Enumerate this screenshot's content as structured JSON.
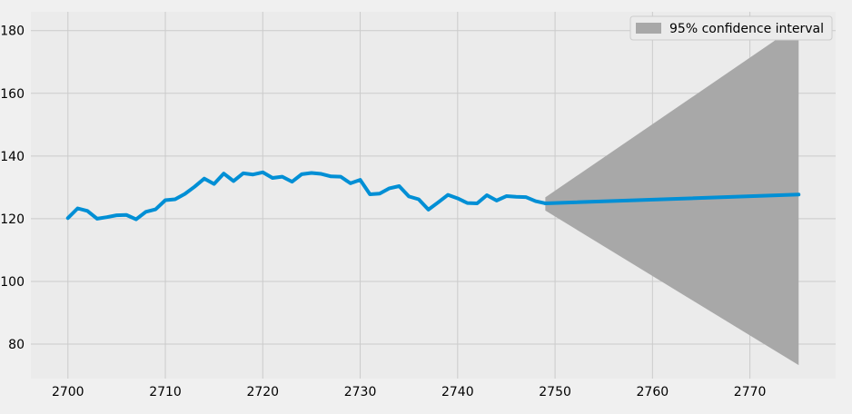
{
  "chart_data": {
    "type": "line",
    "title": "",
    "xlabel": "",
    "ylabel": "",
    "xlim": [
      2696.2,
      2778.8
    ],
    "ylim": [
      69,
      186
    ],
    "x_ticks": [
      2700,
      2710,
      2720,
      2730,
      2740,
      2750,
      2760,
      2770
    ],
    "y_ticks": [
      80,
      100,
      120,
      140,
      160,
      180
    ],
    "grid": true,
    "legend_position": "top-right",
    "colors": {
      "background": "#f0f0f0",
      "plot_area": "#ebebeb",
      "grid": "#cbcbcb",
      "line": "#008fd5",
      "band": "#a8a8a8"
    },
    "series": [
      {
        "values": [
          [
            2700,
            120.2
          ],
          [
            2701,
            123.3
          ],
          [
            2702,
            122.5
          ],
          [
            2703,
            120.0
          ],
          [
            2704,
            120.5
          ],
          [
            2705,
            121.1
          ],
          [
            2706,
            121.2
          ],
          [
            2707,
            119.8
          ],
          [
            2708,
            122.2
          ],
          [
            2709,
            123.0
          ],
          [
            2710,
            125.9
          ],
          [
            2711,
            126.2
          ],
          [
            2712,
            127.9
          ],
          [
            2713,
            130.2
          ],
          [
            2714,
            132.8
          ],
          [
            2715,
            131.1
          ],
          [
            2716,
            134.4
          ],
          [
            2717,
            132.0
          ],
          [
            2718,
            134.5
          ],
          [
            2719,
            134.1
          ],
          [
            2720,
            134.8
          ],
          [
            2721,
            133.0
          ],
          [
            2722,
            133.4
          ],
          [
            2723,
            131.8
          ],
          [
            2724,
            134.2
          ],
          [
            2725,
            134.6
          ],
          [
            2726,
            134.3
          ],
          [
            2727,
            133.5
          ],
          [
            2728,
            133.4
          ],
          [
            2729,
            131.3
          ],
          [
            2730,
            132.4
          ],
          [
            2731,
            127.8
          ],
          [
            2732,
            128.0
          ],
          [
            2733,
            129.7
          ],
          [
            2734,
            130.4
          ],
          [
            2735,
            127.1
          ],
          [
            2736,
            126.2
          ],
          [
            2737,
            122.9
          ],
          [
            2738,
            125.2
          ],
          [
            2739,
            127.6
          ],
          [
            2740,
            126.5
          ],
          [
            2741,
            125.0
          ],
          [
            2742,
            124.9
          ],
          [
            2743,
            127.5
          ],
          [
            2744,
            125.8
          ],
          [
            2745,
            127.2
          ],
          [
            2746,
            127.0
          ],
          [
            2747,
            126.9
          ],
          [
            2748,
            125.6
          ],
          [
            2749,
            124.9
          ]
        ]
      },
      {
        "values": [
          [
            2749,
            124.9
          ],
          [
            2775,
            127.7
          ]
        ]
      }
    ],
    "confidence_band": {
      "name": "95% confidence interval",
      "upper": [
        [
          2749,
          126.8
        ],
        [
          2775,
          182.0
        ]
      ],
      "lower": [
        [
          2749,
          122.6
        ],
        [
          2775,
          73.3
        ]
      ]
    }
  }
}
